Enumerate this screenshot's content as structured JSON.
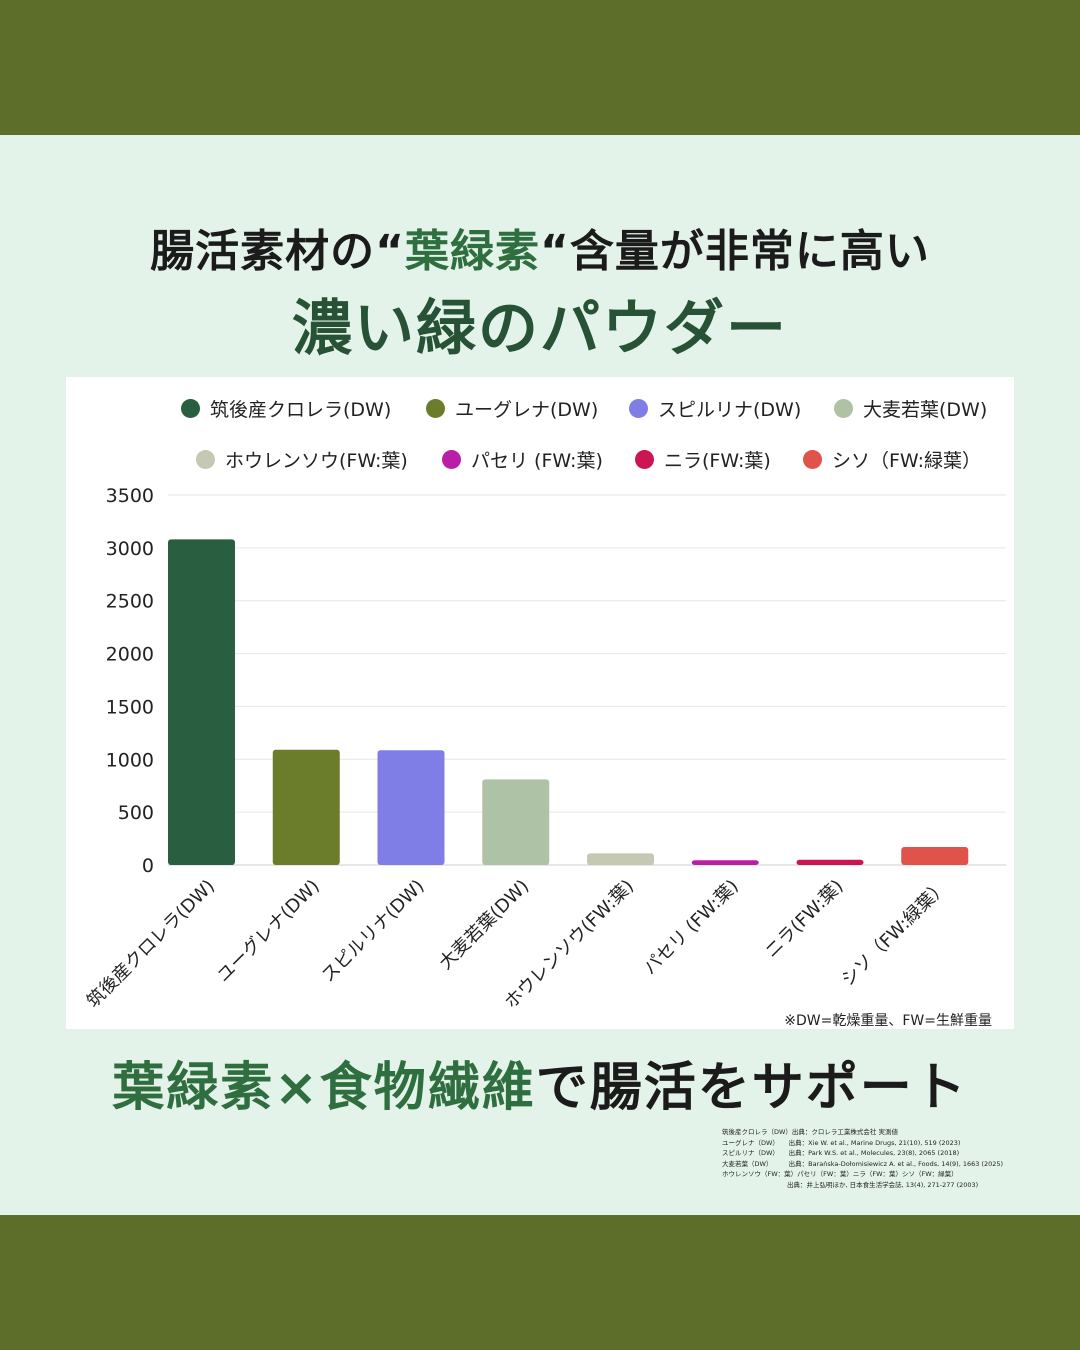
{
  "headline": {
    "pre": "腸活素材の“",
    "highlight": "葉緑素",
    "post": "“含量が非常に高い"
  },
  "subheadline": "濃い緑のパウダー",
  "legend": [
    {
      "label": "筑後産クロレラ(DW)",
      "color": "#2a5e40"
    },
    {
      "label": "ユーグレナ(DW)",
      "color": "#6b7c2a"
    },
    {
      "label": "スピルリナ(DW)",
      "color": "#7f7ee6"
    },
    {
      "label": "大麦若葉(DW)",
      "color": "#aec3a6"
    },
    {
      "label": "ホウレンソウ(FW:葉)",
      "color": "#c5c8b2"
    },
    {
      "label": "パセリ (FW:葉)",
      "color": "#bb1ea6"
    },
    {
      "label": "ニラ(FW:葉)",
      "color": "#cc1553"
    },
    {
      "label": "シソ（FW:緑葉）",
      "color": "#e0534a"
    }
  ],
  "chart_data": {
    "type": "bar",
    "categories": [
      "筑後産クロレラ(DW)",
      "ユーグレナ(DW)",
      "スピルリナ(DW)",
      "大麦若葉(DW)",
      "ホウレンソウ(FW:葉)",
      "パセリ (FW:葉)",
      "ニラ(FW:葉)",
      "シソ（FW:緑葉）"
    ],
    "values": [
      3080,
      1090,
      1085,
      810,
      110,
      45,
      50,
      170
    ],
    "ylim": [
      0,
      3500
    ],
    "yticks": [
      "3500",
      "3000",
      "2500",
      "2000",
      "1500",
      "1000",
      "500",
      "0"
    ],
    "grid": true,
    "legend_position": "top"
  },
  "note": "※DW=乾燥重量、FW=生鮮重量",
  "footer": {
    "highlight": "葉緑素×食物繊維",
    "rest": "で腸活をサポート"
  },
  "citations": [
    "筑後産クロレラ（DW）出典：クロレラ工業株式会社 実測値",
    "ユーグレナ（DW）　　出典：Xie W. et al., Marine Drugs, 21(10), 519 (2023)",
    "スピルリナ（DW）　　出典：Park W.S. et al., Molecules, 23(8), 2065 (2018)",
    "大麦若葉（DW）　　　出典：Barańska-Dołomisiewicz A. et al., Foods, 14(9), 1663 (2025)",
    "ホウレンソウ（FW：葉）パセリ（FW：葉）ニラ（FW：葉）シソ（FW：緑葉）",
    "　　　　　　　　　　出典：井上弘明ほか, 日本食生活学会誌, 13(4), 271-277 (2003)"
  ]
}
